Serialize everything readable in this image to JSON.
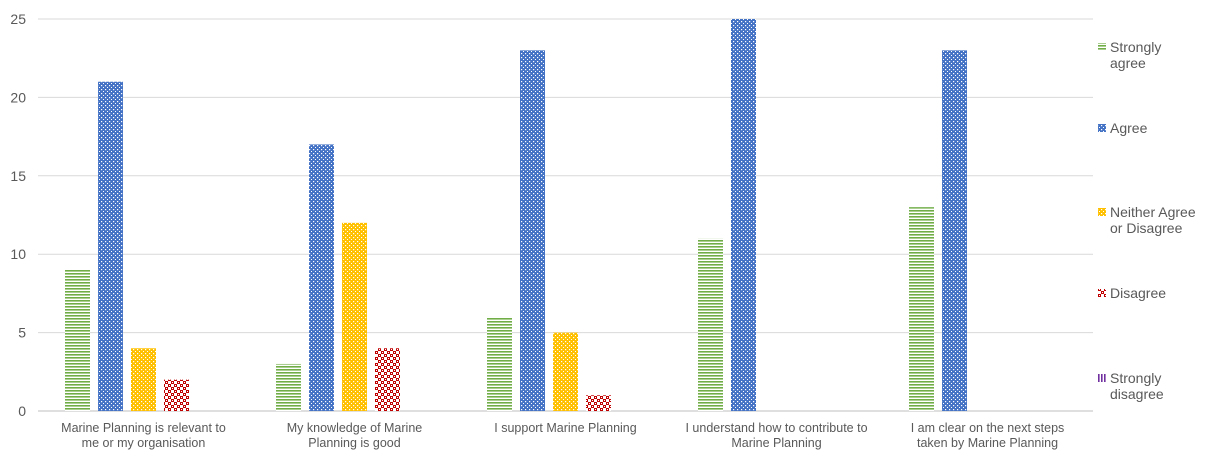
{
  "chart_data": {
    "type": "bar",
    "title": "",
    "xlabel": "",
    "ylabel": "",
    "ylim": [
      0,
      25
    ],
    "yticks": [
      0,
      5,
      10,
      15,
      20,
      25
    ],
    "grid": true,
    "legend_position": "right",
    "categories": [
      [
        "Marine Planning is relevant to",
        "me or my organisation"
      ],
      [
        "My knowledge of Marine",
        "Planning is good"
      ],
      [
        "I support Marine Planning"
      ],
      [
        "I understand how to contribute to",
        "Marine Planning"
      ],
      [
        "I am clear on the next steps",
        "taken by Marine Planning"
      ]
    ],
    "series": [
      {
        "name": "Strongly agree",
        "legend_lines": [
          "Strongly",
          "agree"
        ],
        "color": "#70ad47",
        "pattern": "horizontal-lines",
        "values": [
          9,
          3,
          6,
          11,
          13
        ]
      },
      {
        "name": "Agree",
        "legend_lines": [
          "Agree"
        ],
        "color": "#4472c4",
        "pattern": "dotted-grid",
        "values": [
          21,
          17,
          23,
          25,
          23
        ]
      },
      {
        "name": "Neither Agree or Disagree",
        "legend_lines": [
          "Neither Agree",
          "or Disagree"
        ],
        "color": "#ffc000",
        "pattern": "dotted-grid",
        "values": [
          4,
          12,
          5,
          0,
          0
        ]
      },
      {
        "name": "Disagree",
        "legend_lines": [
          "Disagree"
        ],
        "color": "#c00000",
        "pattern": "checker",
        "values": [
          2,
          4,
          1,
          0,
          0
        ]
      },
      {
        "name": "Strongly disagree",
        "legend_lines": [
          "Strongly",
          "disagree"
        ],
        "color": "#7030a0",
        "pattern": "vertical-lines",
        "values": [
          0,
          0,
          0,
          0,
          0
        ]
      }
    ]
  }
}
